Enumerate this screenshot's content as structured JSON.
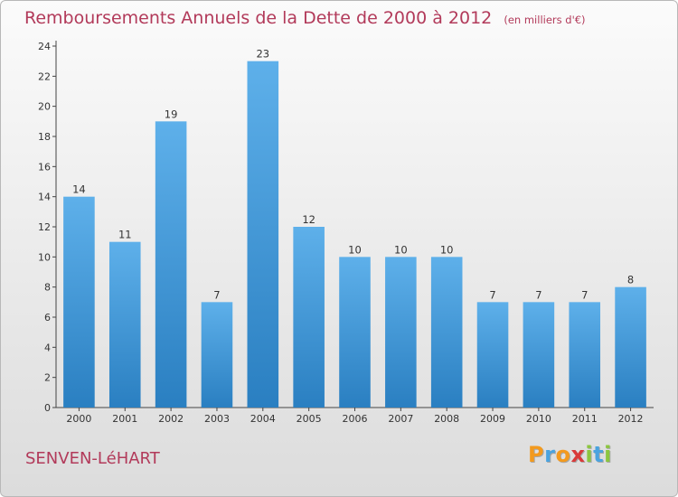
{
  "header": {
    "title": "Remboursements Annuels de la Dette de 2000 à 2012",
    "unit": "(en milliers d'€)"
  },
  "footer": {
    "commune": "SENVEN-LéHART",
    "logo_text": "Proxiti",
    "logo_letters": [
      {
        "ch": "P",
        "color": "#f39a1e"
      },
      {
        "ch": "r",
        "color": "#4aa3df"
      },
      {
        "ch": "o",
        "color": "#f39a1e"
      },
      {
        "ch": "x",
        "color": "#d93a3a"
      },
      {
        "ch": "i",
        "color": "#8cc63f"
      },
      {
        "ch": "t",
        "color": "#4aa3df"
      },
      {
        "ch": "i",
        "color": "#8cc63f"
      }
    ]
  },
  "chart_data": {
    "type": "bar",
    "title": "Remboursements Annuels de la Dette de 2000 à 2012",
    "subtitle": "(en milliers d'€)",
    "xlabel": "",
    "ylabel": "",
    "categories": [
      "2000",
      "2001",
      "2002",
      "2003",
      "2004",
      "2005",
      "2006",
      "2007",
      "2008",
      "2009",
      "2010",
      "2011",
      "2012"
    ],
    "values": [
      14,
      11,
      19,
      7,
      23,
      12,
      10,
      10,
      10,
      7,
      7,
      7,
      8
    ],
    "ylim": [
      0,
      24
    ],
    "yticks": [
      0,
      2,
      4,
      6,
      8,
      10,
      12,
      14,
      16,
      18,
      20,
      22,
      24
    ],
    "grid": false,
    "legend": "none",
    "colors": {
      "bar_light": "#5eb0ea",
      "bar_dark": "#2a7fc1",
      "axis": "#444444",
      "label": "#333333"
    }
  }
}
